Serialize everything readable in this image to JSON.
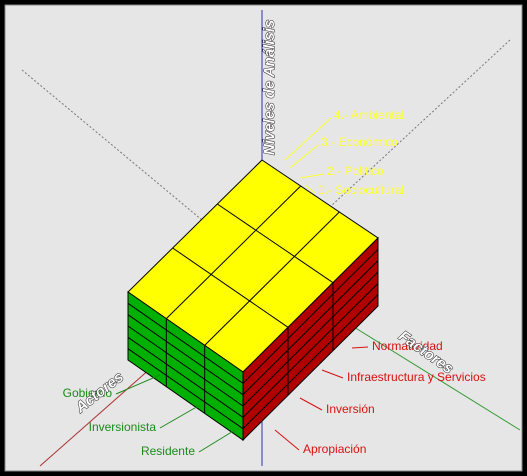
{
  "axes": {
    "vertical": "Niveles de Análisis",
    "right": "Factores",
    "left": "Actores"
  },
  "levels": [
    "4.- Ambiental",
    "3.- Económico",
    "2.- Político",
    "1.- Sociocultural"
  ],
  "factors": [
    "Normatividad",
    "Infraestructura y Servicios",
    "Inversión",
    "Apropiación"
  ],
  "actors": [
    "Gobierno",
    "Inversionista",
    "Residente"
  ]
}
